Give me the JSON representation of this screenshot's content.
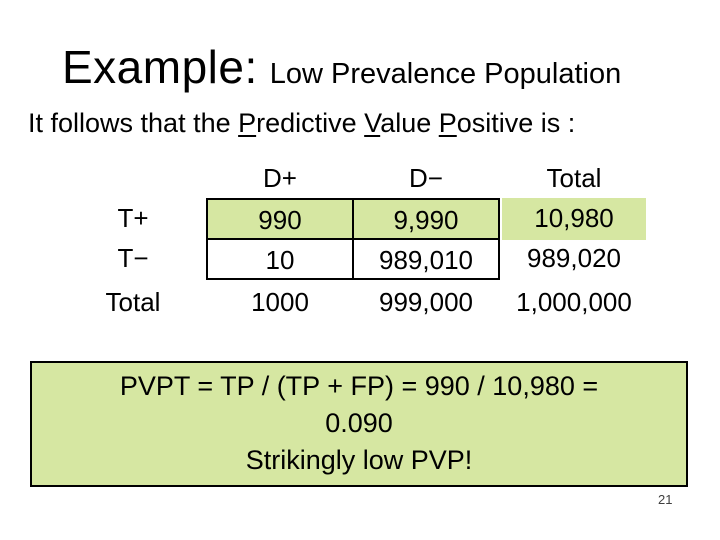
{
  "slide": {
    "title_main": "Example:",
    "title_sub": "Low Prevalence Population",
    "subtitle_segments": [
      {
        "text": "It follows that the ",
        "underline": false
      },
      {
        "text": "P",
        "underline": true
      },
      {
        "text": "redictive ",
        "underline": false
      },
      {
        "text": "V",
        "underline": true
      },
      {
        "text": "alue ",
        "underline": false
      },
      {
        "text": "P",
        "underline": true
      },
      {
        "text": "ositive is :",
        "underline": false
      }
    ],
    "page_number": "21"
  },
  "table": {
    "col_headers": [
      "D+",
      "D−",
      "Total"
    ],
    "row_headers": [
      "T+",
      "T−",
      "Total"
    ],
    "rows": [
      [
        "990",
        "9,990",
        "10,980"
      ],
      [
        "10",
        "989,010",
        "989,020"
      ],
      [
        "1000",
        "999,000",
        "1,000,000"
      ]
    ]
  },
  "callout": {
    "lines": [
      "PVPT = TP / (TP + FP) = 990 / 10,980 =",
      "0.090",
      "Strikingly low PVP!"
    ]
  },
  "colors": {
    "highlight_green": "#d6e7a2",
    "border_black": "#000000"
  }
}
